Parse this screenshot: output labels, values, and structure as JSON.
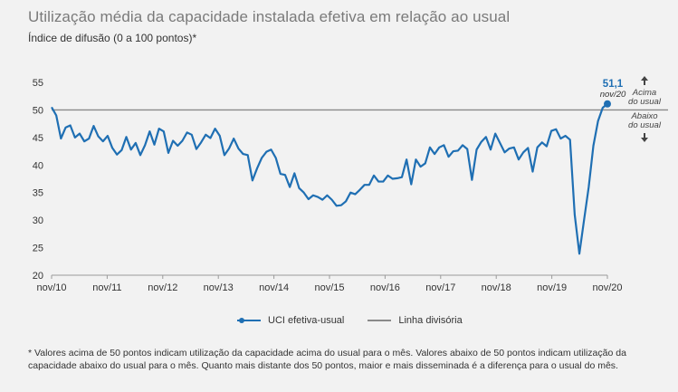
{
  "title": "Utilização média da capacidade instalada efetiva em relação ao usual",
  "subtitle": "Índice de difusão (0 a 100 pontos)*",
  "footnote": "* Valores acima de 50 pontos indicam utilização da capacidade acima do usual para o mês. Valores abaixo de 50 pontos indicam utilização da capacidade abaixo do usual para o mês. Quanto mais distante dos 50 pontos, maior e mais disseminada é a diferença para o usual do mês.",
  "colors": {
    "series": "#1f6fb3",
    "divider": "#8a8a8a",
    "last_value": "#1f6fb3"
  },
  "annotations": {
    "above_line1": "Acima",
    "above_line2": "do usual",
    "below_line1": "Abaixo",
    "below_line2": "do usual",
    "last_value": "51,1",
    "last_date": "nov/20"
  },
  "chart_data": {
    "type": "line",
    "ylim": [
      20,
      55
    ],
    "yticks": [
      20,
      25,
      30,
      35,
      40,
      45,
      50,
      55
    ],
    "xtick_labels": [
      "nov/10",
      "nov/11",
      "nov/12",
      "nov/13",
      "nov/14",
      "nov/15",
      "nov/16",
      "nov/17",
      "nov/18",
      "nov/19",
      "nov/20"
    ],
    "divider": 50,
    "series": [
      {
        "name": "UCI efetiva-usual",
        "values": [
          50.5,
          49.0,
          44.8,
          46.8,
          47.2,
          45.0,
          45.7,
          44.3,
          44.8,
          47.1,
          45.2,
          44.3,
          45.3,
          43.1,
          41.9,
          42.7,
          45.1,
          42.8,
          44.0,
          41.8,
          43.6,
          46.1,
          43.7,
          46.6,
          46.1,
          42.2,
          44.4,
          43.5,
          44.4,
          45.9,
          45.5,
          42.9,
          44.1,
          45.5,
          44.9,
          46.6,
          45.3,
          41.8,
          43.0,
          44.8,
          43.0,
          42.0,
          41.8,
          37.2,
          39.4,
          41.3,
          42.4,
          42.8,
          41.3,
          38.4,
          38.2,
          36.0,
          38.5,
          35.8,
          35.0,
          33.8,
          34.5,
          34.2,
          33.7,
          34.5,
          33.7,
          32.6,
          32.7,
          33.4,
          35.0,
          34.7,
          35.5,
          36.4,
          36.4,
          38.1,
          37.0,
          37.0,
          38.1,
          37.5,
          37.6,
          37.8,
          41.0,
          36.5,
          41.0,
          39.7,
          40.3,
          43.2,
          42.0,
          43.2,
          43.6,
          41.5,
          42.5,
          42.6,
          43.6,
          42.9,
          37.3,
          42.8,
          44.2,
          45.1,
          42.8,
          45.7,
          44.0,
          42.3,
          43.0,
          43.2,
          41.0,
          42.3,
          43.1,
          38.8,
          43.2,
          44.1,
          43.4,
          46.2,
          46.5,
          44.8,
          45.3,
          44.6,
          31.0,
          23.9,
          30.0,
          36.0,
          43.5,
          48.0,
          50.4,
          51.1
        ]
      }
    ],
    "legend": [
      {
        "label": "UCI efetiva-usual",
        "style": "line-dot"
      },
      {
        "label": "Linha divisória",
        "style": "line"
      }
    ],
    "legend_position": "bottom-center",
    "grid": false
  }
}
